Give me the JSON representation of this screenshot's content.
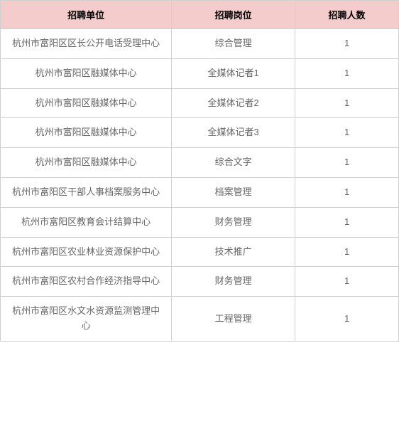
{
  "table": {
    "headers": {
      "org": "招聘单位",
      "position": "招聘岗位",
      "count": "招聘人数"
    },
    "rows": [
      {
        "org": "杭州市富阳区区长公开电话受理中心",
        "position": "综合管理",
        "count": "1"
      },
      {
        "org": "杭州市富阳区融媒体中心",
        "position": "全媒体记者1",
        "count": "1"
      },
      {
        "org": "杭州市富阳区融媒体中心",
        "position": "全媒体记者2",
        "count": "1"
      },
      {
        "org": "杭州市富阳区融媒体中心",
        "position": "全媒体记者3",
        "count": "1"
      },
      {
        "org": "杭州市富阳区融媒体中心",
        "position": "综合文字",
        "count": "1"
      },
      {
        "org": "杭州市富阳区干部人事档案服务中心",
        "position": "档案管理",
        "count": "1"
      },
      {
        "org": "杭州市富阳区教育会计结算中心",
        "position": "财务管理",
        "count": "1"
      },
      {
        "org": "杭州市富阳区农业林业资源保护中心",
        "position": "技术推广",
        "count": "1"
      },
      {
        "org": "杭州市富阳区农村合作经济指导中心",
        "position": "财务管理",
        "count": "1"
      },
      {
        "org": "杭州市富阳区水文水资源监测管理中心",
        "position": "工程管理",
        "count": "1"
      }
    ],
    "header_bg": "#f4cccc",
    "border_color": "#d0d0d0",
    "text_color": "#666",
    "header_text_color": "#000"
  }
}
